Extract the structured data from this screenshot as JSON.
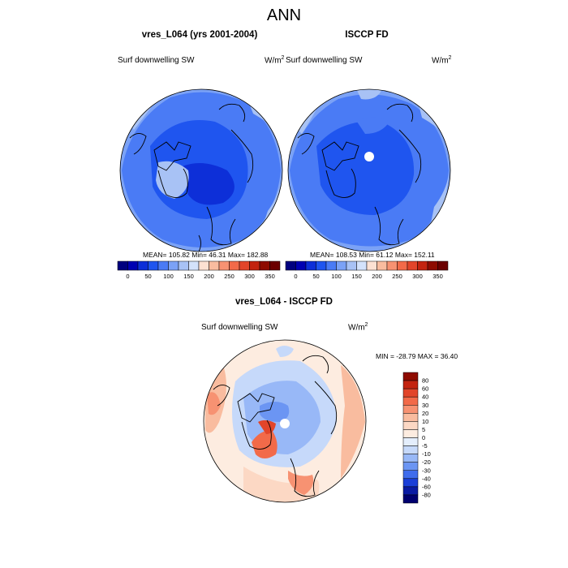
{
  "page": {
    "title": "ANN"
  },
  "panels": [
    {
      "title": "vres_L064 (yrs 2001-2004)",
      "variable": "Surf downwelling SW",
      "units": "W/m",
      "units_exp": "2",
      "stats": "MEAN= 105.82  Min=  46.31  Max= 182.88"
    },
    {
      "title": "ISCCP FD",
      "variable": "Surf downwelling SW",
      "units": "W/m",
      "units_exp": "2",
      "stats": "MEAN= 108.53  Min=  61.12  Max= 152.11"
    },
    {
      "title": "vres_L064 - ISCCP FD",
      "variable": "Surf downwelling SW",
      "units": "W/m",
      "units_exp": "2",
      "stats": "MIN = -28.79 MAX =  36.40"
    }
  ],
  "chart_data": [
    {
      "type": "heatmap",
      "projection": "polar-stereographic-north",
      "title": "vres_L064 (yrs 2001-2004)",
      "variable": "Surf downwelling SW",
      "units": "W/m2",
      "mean": 105.82,
      "min": 46.31,
      "max": 182.88,
      "colorbar": {
        "orientation": "horizontal",
        "ticks": [
          "0",
          "50",
          "100",
          "150",
          "200",
          "250",
          "300",
          "350"
        ],
        "colors": [
          "#00007f",
          "#0000b2",
          "#0d2fd8",
          "#1f55ef",
          "#4a7bf5",
          "#7ba2f6",
          "#a8c2f5",
          "#d3e2fb",
          "#fde1d2",
          "#f9bc9f",
          "#f79272",
          "#f26a49",
          "#e2452a",
          "#c3230f",
          "#8e0b00",
          "#6b0000"
        ]
      }
    },
    {
      "type": "heatmap",
      "projection": "polar-stereographic-north",
      "title": "ISCCP FD",
      "variable": "Surf downwelling SW",
      "units": "W/m2",
      "mean": 108.53,
      "min": 61.12,
      "max": 152.11,
      "colorbar": {
        "orientation": "horizontal",
        "ticks": [
          "0",
          "50",
          "100",
          "150",
          "200",
          "250",
          "300",
          "350"
        ],
        "colors": [
          "#00007f",
          "#0000b2",
          "#0d2fd8",
          "#1f55ef",
          "#4a7bf5",
          "#7ba2f6",
          "#a8c2f5",
          "#d3e2fb",
          "#fde1d2",
          "#f9bc9f",
          "#f79272",
          "#f26a49",
          "#e2452a",
          "#c3230f",
          "#8e0b00",
          "#6b0000"
        ]
      }
    },
    {
      "type": "heatmap",
      "projection": "polar-stereographic-north",
      "title": "vres_L064 - ISCCP FD",
      "variable": "Surf downwelling SW",
      "units": "W/m2",
      "min": -28.79,
      "max": 36.4,
      "colorbar": {
        "orientation": "vertical",
        "labels_top_to_bottom": [
          "80",
          "60",
          "40",
          "30",
          "20",
          "10",
          "5",
          "0",
          "-5",
          "-10",
          "-20",
          "-30",
          "-40",
          "-60",
          "-80"
        ],
        "colors_top_to_bottom": [
          "#8e0b00",
          "#c3230f",
          "#e2452a",
          "#f26a49",
          "#f79272",
          "#f9bc9f",
          "#fcd8c4",
          "#fdece0",
          "#e4eefc",
          "#c6d9fa",
          "#98b8f7",
          "#6b95f3",
          "#3f6cec",
          "#1a3fd8",
          "#0a1ba3",
          "#00006f"
        ]
      }
    }
  ]
}
